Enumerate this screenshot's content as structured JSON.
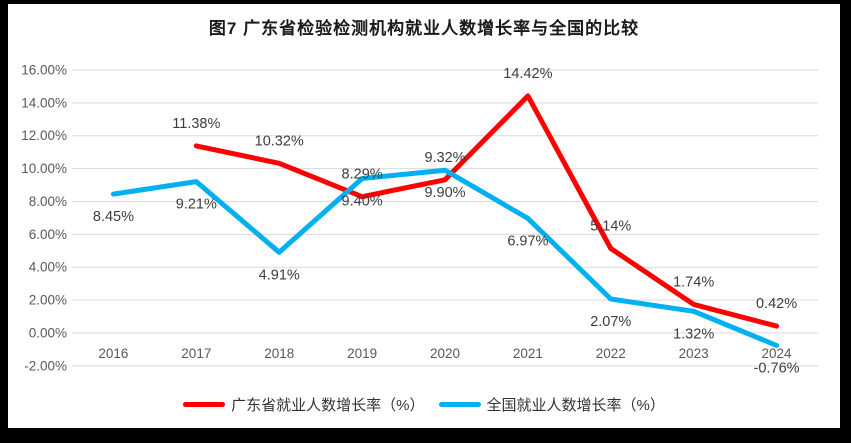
{
  "window": {
    "background_color": "#000000",
    "surface_color": "#ffffff"
  },
  "chart_data": {
    "type": "line",
    "title": "图7  广东省检验检测机构就业人数增长率与全国的比较",
    "xlabel": "",
    "ylabel": "",
    "grid": true,
    "gridline_color": "#d9d9d9",
    "axis_text_color": "#595959",
    "data_label_color": "#3d3d3d",
    "legend_position": "bottom",
    "categories": [
      "2016",
      "2017",
      "2018",
      "2019",
      "2020",
      "2021",
      "2022",
      "2023",
      "2024"
    ],
    "series": [
      {
        "id": "guangdong-growth",
        "name": "广东省就业人数增长率（%）",
        "color": "#fe0000",
        "label_position": "above",
        "values": [
          null,
          11.38,
          10.32,
          8.29,
          9.32,
          14.42,
          5.14,
          1.74,
          0.42
        ],
        "labels": [
          "",
          "11.38%",
          "10.32%",
          "8.29%",
          "9.32%",
          "14.42%",
          "5.14%",
          "1.74%",
          "0.42%"
        ]
      },
      {
        "id": "national-growth",
        "name": "全国就业人数增长率（%）",
        "color": "#00b0f0",
        "label_position": "below",
        "values": [
          8.45,
          9.21,
          4.91,
          9.4,
          9.9,
          6.97,
          2.07,
          1.32,
          -0.76
        ],
        "labels": [
          "8.45%",
          "9.21%",
          "4.91%",
          "9.40%",
          "9.90%",
          "6.97%",
          "2.07%",
          "1.32%",
          "-0.76%"
        ]
      }
    ],
    "y_axis": {
      "min": -2,
      "max": 16,
      "tick_step": 2,
      "ticks": [
        {
          "label": "16.00%",
          "value": 16
        },
        {
          "label": "14.00%",
          "value": 14
        },
        {
          "label": "12.00%",
          "value": 12
        },
        {
          "label": "10.00%",
          "value": 10
        },
        {
          "label": "8.00%",
          "value": 8
        },
        {
          "label": "6.00%",
          "value": 6
        },
        {
          "label": "4.00%",
          "value": 4
        },
        {
          "label": "2.00%",
          "value": 2
        },
        {
          "label": "0.00%",
          "value": 0
        },
        {
          "label": "-2.00%",
          "value": -2
        }
      ]
    }
  }
}
